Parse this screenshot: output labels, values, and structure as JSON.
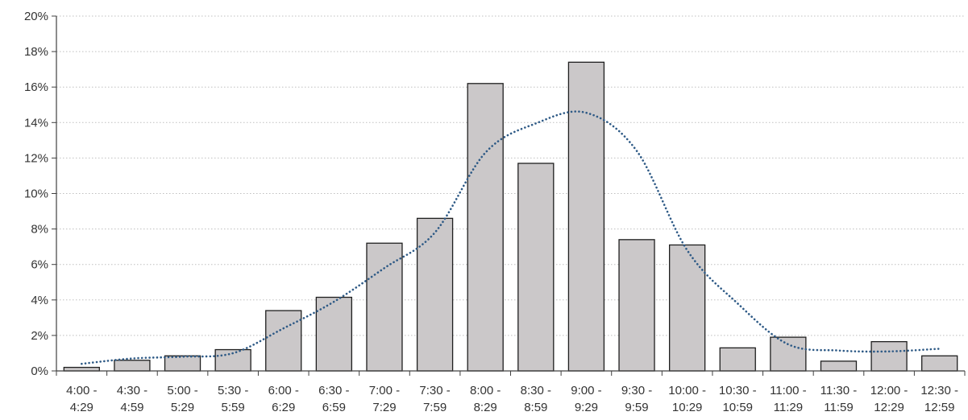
{
  "chart_data": {
    "type": "bar",
    "categories": [
      {
        "line1": "4:00 -",
        "line2": "4:29"
      },
      {
        "line1": "4:30 -",
        "line2": "4:59"
      },
      {
        "line1": "5:00 -",
        "line2": "5:29"
      },
      {
        "line1": "5:30 -",
        "line2": "5:59"
      },
      {
        "line1": "6:00 -",
        "line2": "6:29"
      },
      {
        "line1": "6:30 -",
        "line2": "6:59"
      },
      {
        "line1": "7:00 -",
        "line2": "7:29"
      },
      {
        "line1": "7:30 -",
        "line2": "7:59"
      },
      {
        "line1": "8:00 -",
        "line2": "8:29"
      },
      {
        "line1": "8:30 -",
        "line2": "8:59"
      },
      {
        "line1": "9:00 -",
        "line2": "9:29"
      },
      {
        "line1": "9:30 -",
        "line2": "9:59"
      },
      {
        "line1": "10:00 -",
        "line2": "10:29"
      },
      {
        "line1": "10:30 -",
        "line2": "10:59"
      },
      {
        "line1": "11:00 -",
        "line2": "11:29"
      },
      {
        "line1": "11:30 -",
        "line2": "11:59"
      },
      {
        "line1": "12:00 -",
        "line2": "12:29"
      },
      {
        "line1": "12:30 -",
        "line2": "12:59"
      }
    ],
    "values": [
      0.2,
      0.6,
      0.85,
      1.2,
      3.4,
      4.15,
      7.2,
      8.6,
      16.2,
      11.7,
      17.4,
      7.4,
      7.1,
      1.3,
      1.9,
      0.55,
      1.65,
      0.85
    ],
    "trendline": [
      0.4,
      0.7,
      0.8,
      1.0,
      2.4,
      3.9,
      5.8,
      7.8,
      12.3,
      13.95,
      14.55,
      12.4,
      6.8,
      3.8,
      1.5,
      1.15,
      1.1,
      1.25
    ],
    "y_ticks": [
      "0%",
      "2%",
      "4%",
      "6%",
      "8%",
      "10%",
      "12%",
      "14%",
      "16%",
      "18%",
      "20%"
    ],
    "ylim": [
      0,
      20
    ],
    "title": "",
    "xlabel": "",
    "ylabel": "",
    "grid": true,
    "colors": {
      "bar_fill": "#cbc8c9",
      "bar_stroke": "#1f1f1f",
      "trendline": "#2e5a86",
      "grid": "#bfbfbf",
      "axis": "#404040"
    }
  }
}
